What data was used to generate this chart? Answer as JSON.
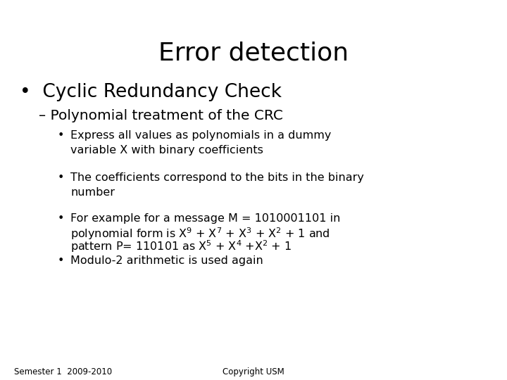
{
  "title": "Error detection",
  "background_color": "#ffffff",
  "text_color": "#000000",
  "title_fontsize": 26,
  "body_font": "DejaVu Sans",
  "body_fontsize": 11.5,
  "bullet1_fontsize": 19,
  "sub_bullet1_fontsize": 14.5,
  "footer_fontsize": 8.5,
  "footer_left": "Semester 1  2009-2010",
  "footer_right": "Copyright USM"
}
